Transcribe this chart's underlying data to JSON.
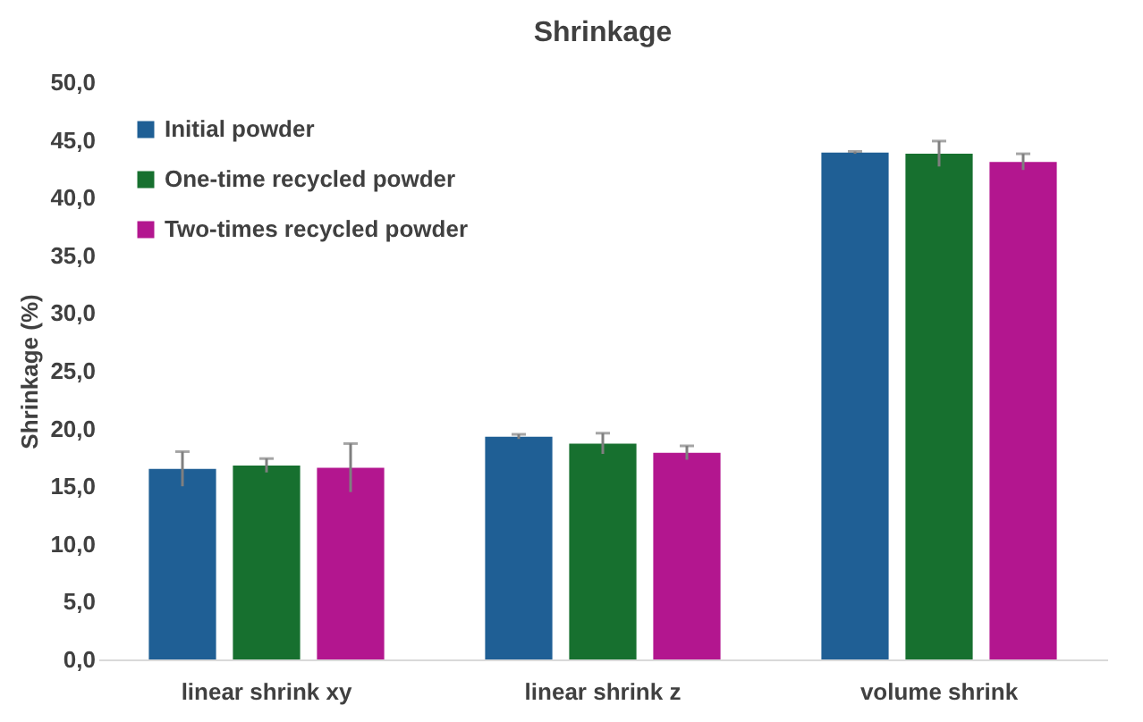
{
  "chart_data": {
    "type": "bar",
    "title": "Shrinkage",
    "ylabel": "Shrinkage (%)",
    "categories": [
      "linear shrink xy",
      "linear shrink z",
      "volume shrink"
    ],
    "series": [
      {
        "name": "Initial powder",
        "color": "#1f5f95",
        "values": [
          16.5,
          19.3,
          43.9
        ],
        "errors": [
          1.5,
          0.2,
          0.1
        ]
      },
      {
        "name": "One-time recycled powder",
        "color": "#17702f",
        "values": [
          16.8,
          18.7,
          43.8
        ],
        "errors": [
          0.6,
          0.9,
          1.1
        ]
      },
      {
        "name": "Two-times recycled powder",
        "color": "#b3168f",
        "values": [
          16.6,
          17.9,
          43.1
        ],
        "errors": [
          2.1,
          0.6,
          0.7
        ]
      }
    ],
    "ylim": [
      0,
      50
    ],
    "yticks": [
      {
        "value": 0,
        "label": "0,0"
      },
      {
        "value": 5,
        "label": "5,0"
      },
      {
        "value": 10,
        "label": "10,0"
      },
      {
        "value": 15,
        "label": "15,0"
      },
      {
        "value": 20,
        "label": "20,0"
      },
      {
        "value": 25,
        "label": "25,0"
      },
      {
        "value": 30,
        "label": "30,0"
      },
      {
        "value": 35,
        "label": "35,0"
      },
      {
        "value": 40,
        "label": "40,0"
      },
      {
        "value": 45,
        "label": "45,0"
      },
      {
        "value": 50,
        "label": "50,0"
      }
    ],
    "grid": false,
    "legend": "top left"
  }
}
